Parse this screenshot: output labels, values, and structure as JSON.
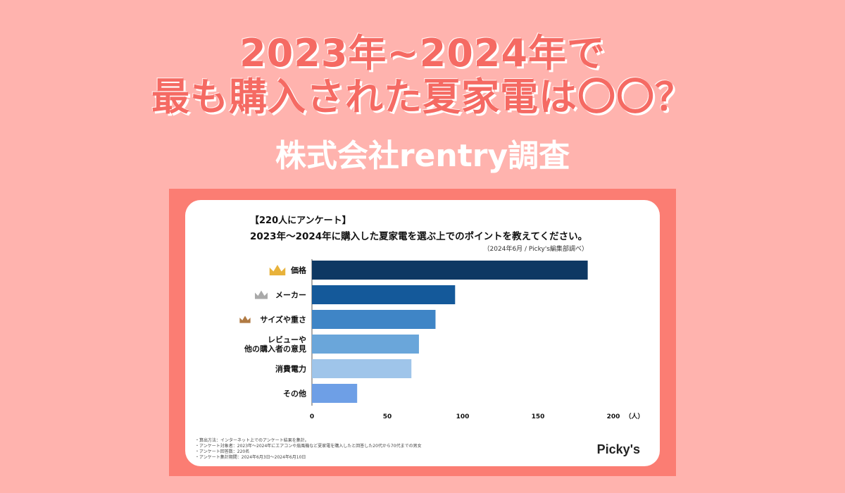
{
  "headline": {
    "line1": "2023年~2024年で",
    "line2": "最も購入された夏家電は〇〇？",
    "subtitle": "株式会社rentry調査"
  },
  "card": {
    "tag": "【220人にアンケート】",
    "question": "2023年～2024年に購入した夏家電を選ぶ上でのポイントを教えてください。",
    "source": "（2024年6月 / Picky's編集部調べ）",
    "brand": "Picky's",
    "notes": [
      "・算出方法：インターネット上でのアンケート結果を集計。",
      "・アンケート対象者：2023年～2024年にエアコンや扇風機など夏家電を購入したと回答した20代から70代までの男女",
      "・アンケート回答数：220名",
      "・アンケート集計期間：2024年6月3日～2024年6月10日"
    ]
  },
  "chart_data": {
    "type": "bar",
    "orientation": "horizontal",
    "categories": [
      "価格",
      "メーカー",
      "サイズや重さ",
      "レビューや\n他の購入者の意見",
      "消費電力",
      "その他"
    ],
    "values": [
      183,
      95,
      82,
      71,
      66,
      30
    ],
    "bar_colors": [
      "#0e3863",
      "#14599a",
      "#3f85c6",
      "#6aa6da",
      "#9fc5ea",
      "#6e9fe6"
    ],
    "ranks": [
      {
        "index": 0,
        "icon": "crown-icon",
        "color": "#e8b23a"
      },
      {
        "index": 1,
        "icon": "crown-icon",
        "color": "#a9a9a9"
      },
      {
        "index": 2,
        "icon": "crown-icon",
        "color": "#b07a43"
      }
    ],
    "x_ticks": [
      0,
      50,
      100,
      150,
      200
    ],
    "xlim": [
      0,
      200
    ],
    "x_unit": "（人）",
    "grid": false
  }
}
